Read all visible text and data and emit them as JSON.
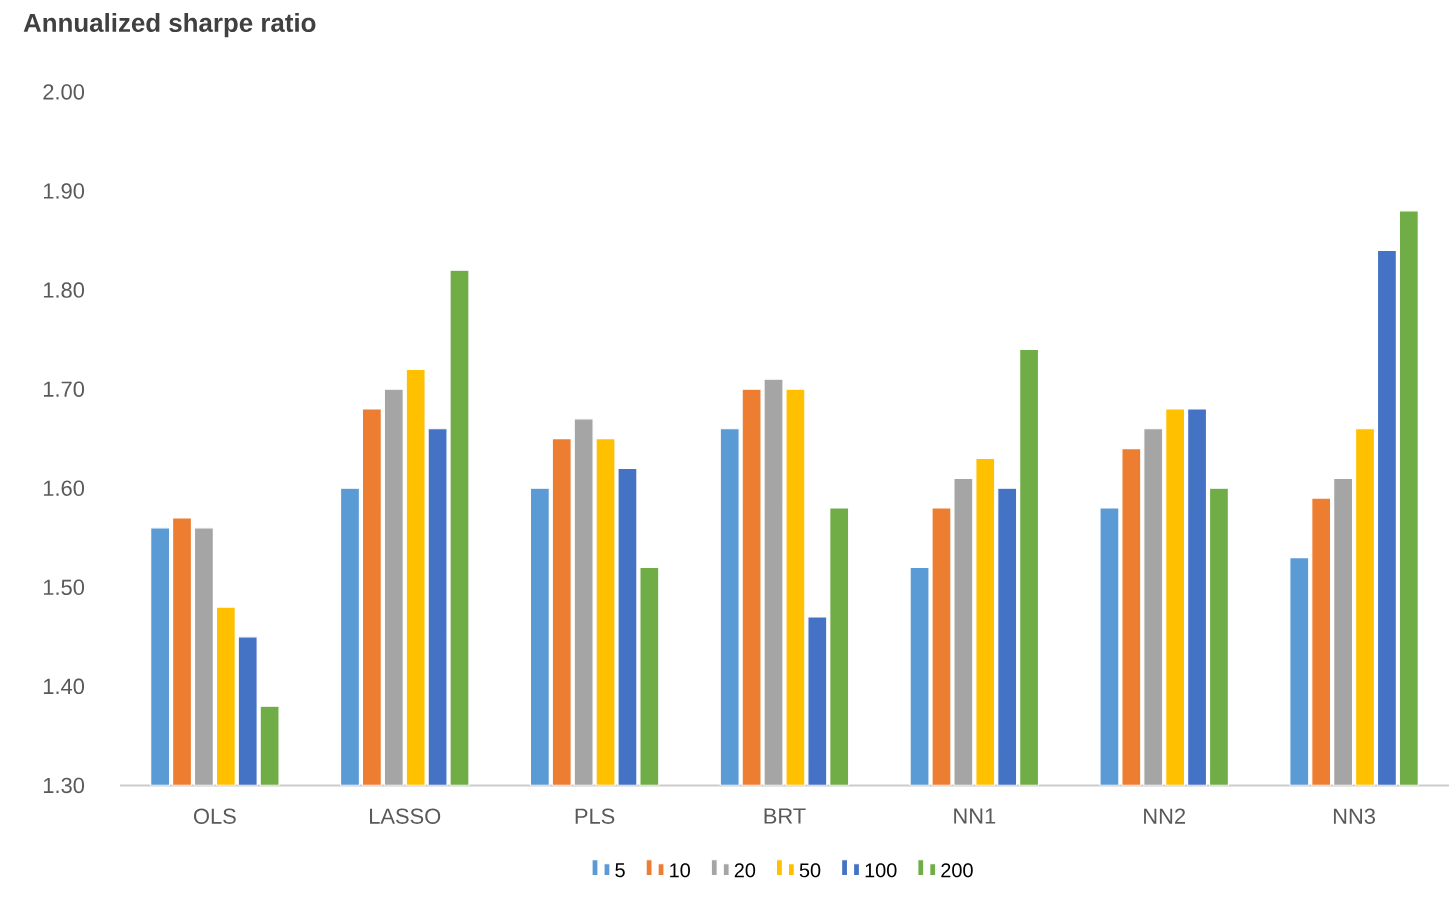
{
  "chart_data": {
    "type": "bar",
    "title": "Annualized sharpe ratio",
    "categories": [
      "OLS",
      "LASSO",
      "PLS",
      "BRT",
      "NN1",
      "NN2",
      "NN3"
    ],
    "series": [
      {
        "name": "5",
        "color": "#5b9bd5",
        "values": [
          1.56,
          1.6,
          1.6,
          1.66,
          1.52,
          1.58,
          1.53
        ]
      },
      {
        "name": "10",
        "color": "#ed7d31",
        "values": [
          1.57,
          1.68,
          1.65,
          1.7,
          1.58,
          1.64,
          1.59
        ]
      },
      {
        "name": "20",
        "color": "#a5a5a5",
        "values": [
          1.56,
          1.7,
          1.67,
          1.71,
          1.61,
          1.66,
          1.61
        ]
      },
      {
        "name": "50",
        "color": "#ffc000",
        "values": [
          1.48,
          1.72,
          1.65,
          1.7,
          1.63,
          1.68,
          1.66
        ]
      },
      {
        "name": "100",
        "color": "#4472c4",
        "values": [
          1.45,
          1.66,
          1.62,
          1.47,
          1.6,
          1.68,
          1.84
        ]
      },
      {
        "name": "200",
        "color": "#70ad47",
        "values": [
          1.38,
          1.82,
          1.52,
          1.58,
          1.74,
          1.6,
          1.88
        ]
      }
    ],
    "ylim": [
      1.3,
      2.0
    ],
    "yticks": [
      {
        "value": 1.3,
        "label": "1.30"
      },
      {
        "value": 1.4,
        "label": "1.40"
      },
      {
        "value": 1.5,
        "label": "1.50"
      },
      {
        "value": 1.6,
        "label": "1.60"
      },
      {
        "value": 1.7,
        "label": "1.70"
      },
      {
        "value": 1.8,
        "label": "1.80"
      },
      {
        "value": 1.9,
        "label": "1.90"
      },
      {
        "value": 2.0,
        "label": "2.00"
      }
    ],
    "legend": "bottom"
  }
}
